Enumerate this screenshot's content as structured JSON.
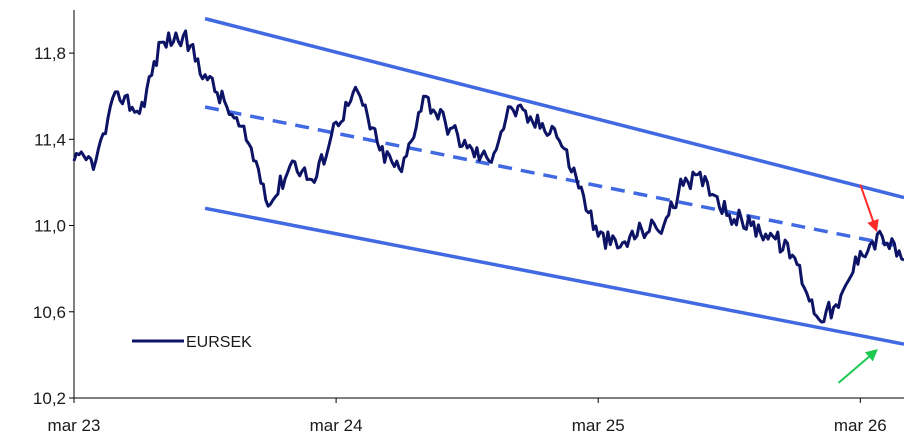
{
  "chart_data": {
    "type": "line",
    "title": "",
    "xlabel": "",
    "ylabel": "",
    "x_ticks": [
      "mar 23",
      "mar 24",
      "mar 25",
      "mar 26"
    ],
    "y_ticks": [
      "10,2",
      "10,6",
      "11,0",
      "11,4",
      "11,8"
    ],
    "ylim": [
      10.2,
      12.0
    ],
    "xlim": [
      "2023-03",
      "2026-05"
    ],
    "grid": false,
    "legend_position": "bottom-left",
    "series": [
      {
        "name": "EURSEK",
        "color": "#0d1466",
        "x": [
          "2023-03",
          "2023-04",
          "2023-05",
          "2023-06",
          "2023-07",
          "2023-08",
          "2023-09",
          "2023-10",
          "2023-11",
          "2023-12",
          "2024-01",
          "2024-02",
          "2024-03",
          "2024-04",
          "2024-05",
          "2024-06",
          "2024-07",
          "2024-08",
          "2024-09",
          "2024-10",
          "2024-11",
          "2024-12",
          "2025-01",
          "2025-02",
          "2025-03",
          "2025-04",
          "2025-05",
          "2025-06",
          "2025-07",
          "2025-08",
          "2025-09",
          "2025-10",
          "2025-11",
          "2025-12",
          "2026-01",
          "2026-02",
          "2026-03",
          "2026-04",
          "2026-05"
        ],
        "values": [
          11.3,
          11.3,
          11.62,
          11.52,
          11.85,
          11.88,
          11.7,
          11.55,
          11.38,
          11.1,
          11.3,
          11.2,
          11.48,
          11.62,
          11.35,
          11.25,
          11.6,
          11.48,
          11.36,
          11.3,
          11.55,
          11.48,
          11.45,
          11.22,
          10.95,
          10.9,
          10.98,
          11.0,
          11.22,
          11.2,
          11.05,
          11.0,
          10.95,
          10.85,
          10.58,
          10.62,
          10.88,
          10.95,
          10.84
        ]
      }
    ],
    "channel": {
      "color": "#4169e1",
      "upper": {
        "start": [
          "2023-09",
          11.96
        ],
        "end": [
          "2026-05",
          11.13
        ]
      },
      "middle": {
        "start": [
          "2023-09",
          11.55
        ],
        "end": [
          "2026-05",
          10.9
        ],
        "style": "dashed"
      },
      "lower": {
        "start": [
          "2023-09",
          11.08
        ],
        "end": [
          "2026-05",
          10.45
        ]
      }
    },
    "annotations": [
      {
        "type": "arrow",
        "color": "#ff2a2a",
        "from": [
          "2026-03",
          11.19
        ],
        "to": [
          "2026-04",
          10.98
        ]
      },
      {
        "type": "arrow",
        "color": "#1ec94f",
        "from": [
          "2026-02",
          10.27
        ],
        "to": [
          "2026-04",
          10.42
        ]
      }
    ]
  }
}
